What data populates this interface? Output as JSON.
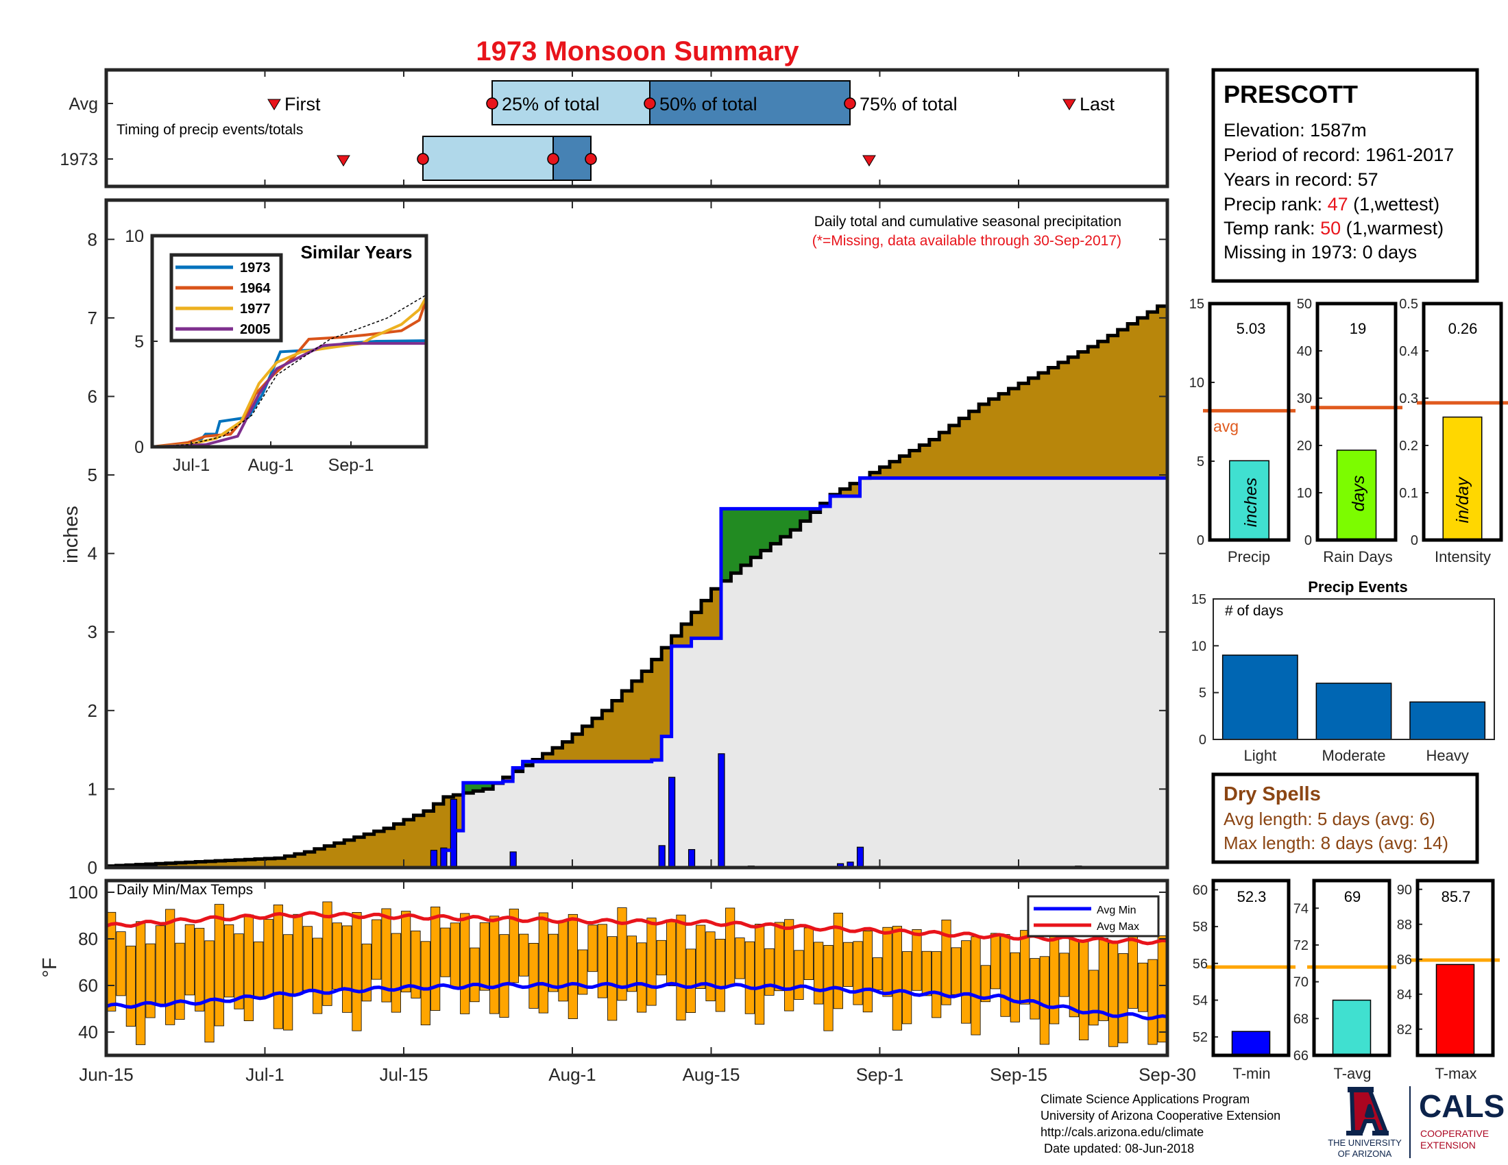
{
  "title": "1973 Monsoon Summary",
  "colors": {
    "title": "#e8141b",
    "accent_red": "#e8141b",
    "precip_fill": "#b8860b",
    "green_fill": "#228b22",
    "gray_fill": "#e8e8e8",
    "blue": "#0000ff",
    "orange": "#ffa500",
    "avg_line": "#e05a1e",
    "brown": "#8b4513",
    "teal": "#40e0d0",
    "lime": "#7cfc00",
    "gold": "#ffd700",
    "event_bar": "#0066b3",
    "light_blue": "#b0d8ea",
    "mid_blue": "#4682b4",
    "ua_navy": "#0c234b",
    "ua_red": "#ab0520"
  },
  "timing": {
    "label": "Timing of precip events/totals",
    "row_avg_label": "Avg",
    "row_year_label": "1973",
    "avg_first": "First",
    "avg_25": "25% of total",
    "avg_50": "50% of total",
    "avg_75": "75% of total",
    "avg_last": "Last"
  },
  "station": {
    "name": "PRESCOTT",
    "elevation": "Elevation: 1587m",
    "period": "Period of record: 1961-2017",
    "years": "Years in record: 57",
    "precip_rank_label": "Precip rank: ",
    "precip_rank_value": "47",
    "precip_rank_suffix": " (1,wettest)",
    "temp_rank_label": "Temp rank: ",
    "temp_rank_value": "50",
    "temp_rank_suffix": " (1,warmest)",
    "missing": "Missing in 1973: 0 days"
  },
  "precip_panel": {
    "note": "Daily total and cumulative seasonal precipitation",
    "missing_note": "(*=Missing, data available through 30-Sep-2017)",
    "ylabel": "inches",
    "yticks": [
      "0",
      "1",
      "2",
      "3",
      "4",
      "5",
      "6",
      "7",
      "8"
    ]
  },
  "similar": {
    "title": "Similar Years",
    "yticks": [
      "0",
      "5",
      "10"
    ],
    "xticks": [
      "Jul-1",
      "Aug-1",
      "Sep-1"
    ],
    "legend": [
      {
        "name": "1973",
        "color": "#0072bd"
      },
      {
        "name": "1964",
        "color": "#d95319"
      },
      {
        "name": "1977",
        "color": "#edb120"
      },
      {
        "name": "2005",
        "color": "#7e2f8e"
      }
    ]
  },
  "temps": {
    "label": "Daily Min/Max Temps",
    "ylabel": "°F",
    "yticks": [
      "40",
      "60",
      "80",
      "100"
    ],
    "legend_min": "Avg Min",
    "legend_max": "Avg Max"
  },
  "xaxis": [
    "Jun-15",
    "Jul-1",
    "Jul-15",
    "Aug-1",
    "Aug-15",
    "Sep-1",
    "Sep-15",
    "Sep-30"
  ],
  "mini": [
    {
      "value": "5.03",
      "xlabel": "Precip",
      "unit": "inches",
      "yticks": [
        "0",
        "5",
        "10",
        "15"
      ],
      "avg_label": "avg"
    },
    {
      "value": "19",
      "xlabel": "Rain Days",
      "unit": "days",
      "yticks": [
        "0",
        "10",
        "20",
        "30",
        "40",
        "50"
      ]
    },
    {
      "value": "0.26",
      "xlabel": "Intensity",
      "unit": "in/day",
      "yticks": [
        "0",
        "0.1",
        "0.2",
        "0.3",
        "0.4",
        "0.5"
      ]
    }
  ],
  "events": {
    "title": "Precip Events",
    "ylabel": "# of days",
    "yticks": [
      "0",
      "5",
      "10",
      "15"
    ],
    "categories": [
      "Light",
      "Moderate",
      "Heavy"
    ]
  },
  "dry": {
    "title": "Dry Spells",
    "avg": "Avg length: 5 days (avg: 6)",
    "max": "Max length: 8 days (avg: 14)"
  },
  "tpanels": [
    {
      "value": "52.3",
      "xlabel": "T-min",
      "yticks": [
        "52",
        "54",
        "56",
        "58",
        "60"
      ]
    },
    {
      "value": "69",
      "xlabel": "T-avg",
      "yticks": [
        "66",
        "68",
        "70",
        "72",
        "74"
      ]
    },
    {
      "value": "85.7",
      "xlabel": "T-max",
      "yticks": [
        "82",
        "84",
        "86",
        "88",
        "90"
      ]
    }
  ],
  "footer": {
    "line1": "Climate Science Applications Program",
    "line2": "University of Arizona Cooperative Extension",
    "line3": "http://cals.arizona.edu/climate",
    "line4": " Date updated: 08-Jun-2018",
    "ua1": "THE UNIVERSITY",
    "ua2": "OF ARIZONA",
    "cals": "CALS",
    "coop1": "COOPERATIVE",
    "coop2": "EXTENSION"
  },
  "chart_data": [
    {
      "type": "bar",
      "name": "timing",
      "x_range": [
        "Jun-15",
        "Sep-30"
      ],
      "avg": {
        "first": "Jul-2",
        "p25": "Jul-22",
        "p50": "Aug-2",
        "p75": "Aug-21",
        "last": "Sep-22"
      },
      "year_1973": {
        "first": "Jul-7",
        "p25": "Jul-16",
        "p50": "Jul-30",
        "p75": "Aug-3",
        "last": "Sep-1"
      }
    },
    {
      "type": "area",
      "name": "cumulative precipitation",
      "xlim": [
        0,
        107
      ],
      "ylim": [
        0,
        8.5
      ],
      "avg_cumulative": [
        [
          0,
          0.02
        ],
        [
          10,
          0.08
        ],
        [
          17,
          0.12
        ],
        [
          20,
          0.2
        ],
        [
          24,
          0.35
        ],
        [
          28,
          0.5
        ],
        [
          32,
          0.72
        ],
        [
          34,
          0.9
        ],
        [
          38,
          1.0
        ],
        [
          42,
          1.3
        ],
        [
          46,
          1.6
        ],
        [
          50,
          2.0
        ],
        [
          54,
          2.5
        ],
        [
          58,
          3.1
        ],
        [
          61,
          3.55
        ],
        [
          65,
          3.95
        ],
        [
          69,
          4.3
        ],
        [
          73,
          4.75
        ],
        [
          78,
          5.1
        ],
        [
          83,
          5.45
        ],
        [
          88,
          5.9
        ],
        [
          94,
          6.3
        ],
        [
          100,
          6.7
        ],
        [
          106,
          7.15
        ],
        [
          107,
          7.2
        ]
      ],
      "year_cumulative": [
        [
          0,
          0
        ],
        [
          33,
          0
        ],
        [
          34,
          0.22
        ],
        [
          35,
          0.47
        ],
        [
          35.5,
          0.86
        ],
        [
          36,
          1.08
        ],
        [
          40,
          1.1
        ],
        [
          41,
          1.27
        ],
        [
          42,
          1.35
        ],
        [
          55,
          1.37
        ],
        [
          56,
          1.67
        ],
        [
          57,
          2.82
        ],
        [
          59,
          2.92
        ],
        [
          60,
          2.92
        ],
        [
          62,
          4.57
        ],
        [
          72,
          4.6
        ],
        [
          73,
          4.73
        ],
        [
          76,
          4.96
        ],
        [
          107,
          5.03
        ]
      ],
      "daily_bars": [
        [
          33,
          0.22
        ],
        [
          34,
          0.25
        ],
        [
          35,
          0.87
        ],
        [
          41,
          0.2
        ],
        [
          56,
          0.28
        ],
        [
          57,
          1.15
        ],
        [
          59,
          0.23
        ],
        [
          62,
          1.45
        ],
        [
          65,
          0.02
        ],
        [
          74,
          0.05
        ],
        [
          75,
          0.07
        ],
        [
          76,
          0.26
        ],
        [
          98,
          0.02
        ]
      ]
    },
    {
      "type": "line",
      "name": "similar years",
      "xticks": [
        "Jul-1",
        "Aug-1",
        "Sep-1"
      ],
      "ylim": [
        0,
        10
      ],
      "series": [
        {
          "name": "1973",
          "points": [
            [
              0,
              0
            ],
            [
              12,
              0
            ],
            [
              15,
              0.6
            ],
            [
              18,
              0.6
            ],
            [
              19,
              1.2
            ],
            [
              23,
              1.3
            ],
            [
              27,
              1.4
            ],
            [
              31,
              2.5
            ],
            [
              36,
              4.5
            ],
            [
              46,
              4.6
            ],
            [
              54,
              4.9
            ],
            [
              63,
              5
            ],
            [
              77,
              5.03
            ]
          ]
        },
        {
          "name": "1964",
          "points": [
            [
              0,
              0
            ],
            [
              10,
              0.2
            ],
            [
              15,
              0.5
            ],
            [
              22,
              0.6
            ],
            [
              26,
              1.4
            ],
            [
              29,
              2.5
            ],
            [
              34,
              3.4
            ],
            [
              40,
              4.3
            ],
            [
              44,
              5.1
            ],
            [
              54,
              5.2
            ],
            [
              60,
              5.3
            ],
            [
              70,
              5.5
            ],
            [
              75,
              6
            ],
            [
              77,
              7
            ]
          ]
        },
        {
          "name": "1977",
          "points": [
            [
              0,
              0
            ],
            [
              10,
              0.1
            ],
            [
              18,
              0.4
            ],
            [
              25,
              1.2
            ],
            [
              30,
              3
            ],
            [
              35,
              4
            ],
            [
              42,
              4.5
            ],
            [
              50,
              4.7
            ],
            [
              59,
              4.9
            ],
            [
              62,
              5.2
            ],
            [
              70,
              5.8
            ],
            [
              75,
              6.5
            ],
            [
              77,
              7.1
            ]
          ]
        },
        {
          "name": "2005",
          "points": [
            [
              0,
              0
            ],
            [
              15,
              0.1
            ],
            [
              24,
              0.5
            ],
            [
              27,
              1.5
            ],
            [
              30,
              2.5
            ],
            [
              35,
              3.7
            ],
            [
              42,
              4.3
            ],
            [
              48,
              4.8
            ],
            [
              56,
              4.9
            ],
            [
              65,
              4.9
            ],
            [
              77,
              4.9
            ]
          ]
        },
        {
          "name": "Avg",
          "points": [
            [
              0,
              0
            ],
            [
              10,
              0.1
            ],
            [
              20,
              0.5
            ],
            [
              28,
              1.5
            ],
            [
              35,
              3.4
            ],
            [
              42,
              4.2
            ],
            [
              50,
              5.1
            ],
            [
              58,
              5.6
            ],
            [
              66,
              6.1
            ],
            [
              77,
              7.2
            ]
          ]
        }
      ]
    },
    {
      "type": "bar",
      "name": "daily min/max temps",
      "ylim": [
        30,
        105
      ],
      "days": 108,
      "avg_min_points": [
        [
          0,
          51
        ],
        [
          10,
          53
        ],
        [
          20,
          57
        ],
        [
          30,
          59
        ],
        [
          40,
          60
        ],
        [
          50,
          60
        ],
        [
          60,
          60
        ],
        [
          70,
          59
        ],
        [
          80,
          57
        ],
        [
          90,
          55
        ],
        [
          100,
          48
        ],
        [
          107,
          46
        ]
      ],
      "avg_max_points": [
        [
          0,
          85.5
        ],
        [
          10,
          88.5
        ],
        [
          20,
          90.5
        ],
        [
          30,
          89.5
        ],
        [
          40,
          88.5
        ],
        [
          50,
          87.5
        ],
        [
          60,
          87
        ],
        [
          70,
          85
        ],
        [
          80,
          83
        ],
        [
          90,
          81
        ],
        [
          100,
          79.5
        ],
        [
          107,
          78.5
        ]
      ]
    },
    {
      "type": "bar",
      "name": "Precip",
      "values": [
        5.03
      ],
      "average": 8.2,
      "ylim": [
        0,
        15
      ]
    },
    {
      "type": "bar",
      "name": "Rain Days",
      "values": [
        19
      ],
      "average": 28,
      "ylim": [
        0,
        50
      ]
    },
    {
      "type": "bar",
      "name": "Intensity",
      "values": [
        0.26
      ],
      "average": 0.29,
      "ylim": [
        0,
        0.5
      ]
    },
    {
      "type": "bar",
      "name": "Precip Events",
      "categories": [
        "Light",
        "Moderate",
        "Heavy"
      ],
      "values": [
        9,
        6,
        4
      ],
      "ylim": [
        0,
        15
      ]
    },
    {
      "type": "bar",
      "name": "T-min",
      "values": [
        52.3
      ],
      "average": 55.8,
      "ylim": [
        51,
        60.5
      ]
    },
    {
      "type": "bar",
      "name": "T-avg",
      "values": [
        69
      ],
      "average": 70.8,
      "ylim": [
        66,
        75.5
      ]
    },
    {
      "type": "bar",
      "name": "T-max",
      "values": [
        85.7
      ],
      "average": 85.95,
      "ylim": [
        80.5,
        90.5
      ]
    }
  ]
}
